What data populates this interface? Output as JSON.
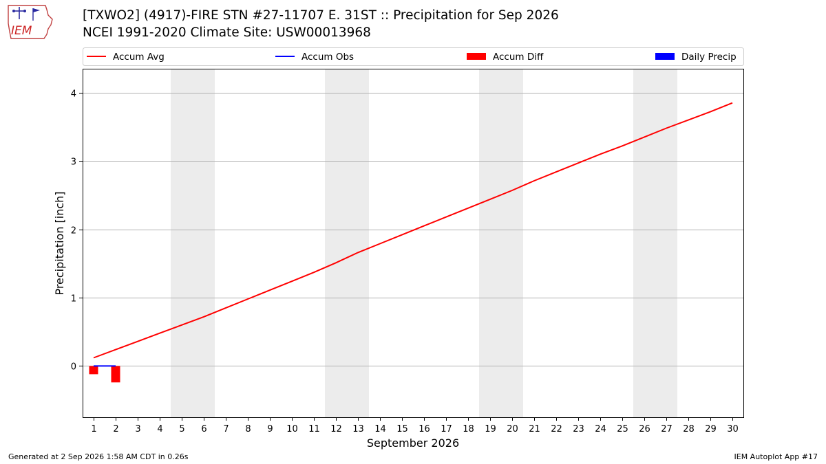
{
  "header": {
    "title_line1": "[TXWO2] (4917)-FIRE STN #27-11707 E. 31ST :: Precipitation for Sep 2026",
    "title_line2": "NCEI 1991-2020 Climate Site: USW00013968",
    "logo_text": "IEM"
  },
  "footer": {
    "generated": "Generated at 2 Sep 2026 1:58 AM CDT in 0.26s",
    "app": "IEM Autoplot App #17"
  },
  "chart_data": {
    "type": "line",
    "xlabel": "September 2026",
    "ylabel": "Precipitation [inch]",
    "xlim": [
      0.5,
      30.5
    ],
    "ylim": [
      -0.75,
      4.35
    ],
    "yticks": [
      0,
      1,
      2,
      3,
      4
    ],
    "x_ticks": [
      1,
      2,
      3,
      4,
      5,
      6,
      7,
      8,
      9,
      10,
      11,
      12,
      13,
      14,
      15,
      16,
      17,
      18,
      19,
      20,
      21,
      22,
      23,
      24,
      25,
      26,
      27,
      28,
      29,
      30
    ],
    "grid": "horizontal",
    "weekend_shading": [
      [
        4.5,
        6.5
      ],
      [
        11.5,
        13.5
      ],
      [
        18.5,
        20.5
      ],
      [
        25.5,
        27.5
      ]
    ],
    "legend": {
      "placement": "top",
      "entries": [
        {
          "label": "Accum Avg",
          "kind": "line",
          "color": "#ff0000"
        },
        {
          "label": "Accum Obs",
          "kind": "line",
          "color": "#0000ff"
        },
        {
          "label": "Accum Diff",
          "kind": "bar",
          "color": "#ff0000"
        },
        {
          "label": "Daily Precip",
          "kind": "bar",
          "color": "#0000ff"
        }
      ]
    },
    "series": [
      {
        "name": "Accum Avg",
        "color": "#ff0000",
        "x": [
          1,
          2,
          3,
          4,
          5,
          6,
          7,
          8,
          9,
          10,
          11,
          12,
          13,
          14,
          15,
          16,
          17,
          18,
          19,
          20,
          21,
          22,
          23,
          24,
          25,
          26,
          27,
          28,
          29,
          30
        ],
        "values": [
          0.12,
          0.24,
          0.36,
          0.48,
          0.6,
          0.72,
          0.85,
          0.98,
          1.11,
          1.24,
          1.37,
          1.51,
          1.66,
          1.79,
          1.92,
          2.05,
          2.18,
          2.31,
          2.44,
          2.57,
          2.71,
          2.84,
          2.97,
          3.1,
          3.22,
          3.35,
          3.48,
          3.6,
          3.72,
          3.85
        ]
      },
      {
        "name": "Accum Obs",
        "color": "#0000ff",
        "x": [
          1,
          2
        ],
        "values": [
          0.0,
          0.0
        ]
      },
      {
        "name": "Accum Diff",
        "color": "#ff0000",
        "kind": "bar",
        "x": [
          1,
          2
        ],
        "values": [
          -0.12,
          -0.24
        ]
      },
      {
        "name": "Daily Precip",
        "color": "#0000ff",
        "kind": "bar",
        "x": [
          1,
          2
        ],
        "values": [
          0.0,
          0.0
        ]
      }
    ]
  }
}
